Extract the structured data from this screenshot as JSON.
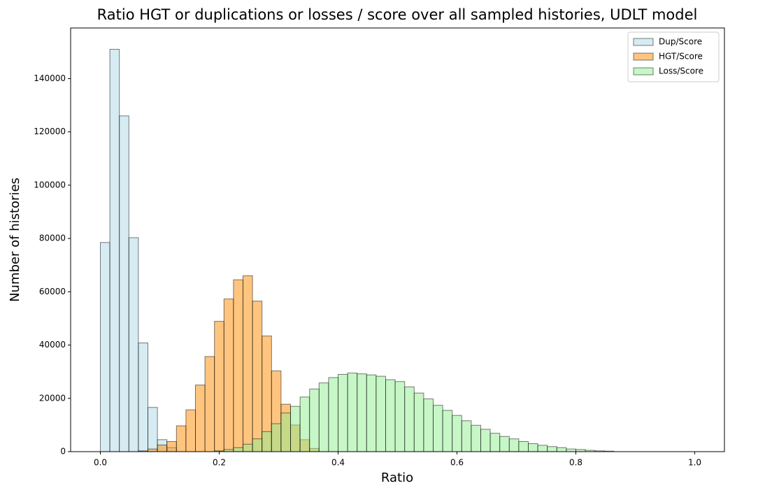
{
  "chart_data": {
    "type": "histogram",
    "title": "Ratio HGT or duplications or losses / score over all sampled histories, UDLT model",
    "xlabel": "Ratio",
    "ylabel": "Number of histories",
    "xlim": [
      -0.05,
      1.05
    ],
    "ylim": [
      0,
      159000
    ],
    "xticks": [
      {
        "value": 0,
        "label": "0.0"
      },
      0.2,
      0.4,
      0.6,
      0.8,
      {
        "value": 1,
        "label": "1.0"
      }
    ],
    "yticks": [
      0,
      20000,
      40000,
      60000,
      80000,
      100000,
      120000,
      140000
    ],
    "legend": "upper right",
    "opacity": 0.5,
    "series": [
      {
        "name": "Dup/Score",
        "color": "#add8e6",
        "bins": [
          0,
          0.016,
          0.032,
          0.048,
          0.064,
          0.08,
          0.096,
          0.112,
          0.128
        ],
        "values": [
          78500,
          151000,
          126000,
          80300,
          40800,
          16600,
          4500,
          1500
        ]
      },
      {
        "name": "HGT/Score",
        "color": "#ff8c00",
        "bins": [
          0.064,
          0.08,
          0.096,
          0.112,
          0.128,
          0.144,
          0.16,
          0.176,
          0.192,
          0.208,
          0.224,
          0.24,
          0.256,
          0.272,
          0.288,
          0.304,
          0.32,
          0.336,
          0.352,
          0.368
        ],
        "values": [
          300,
          1000,
          2500,
          3800,
          9700,
          15700,
          25000,
          35700,
          48900,
          57300,
          64500,
          66000,
          56500,
          43400,
          30300,
          17800,
          10000,
          4500,
          1200
        ]
      },
      {
        "name": "Loss/Score",
        "color": "#90ee90",
        "bins": [
          0.192,
          0.208,
          0.224,
          0.24,
          0.256,
          0.272,
          0.288,
          0.304,
          0.32,
          0.336,
          0.352,
          0.368,
          0.384,
          0.4,
          0.416,
          0.432,
          0.448,
          0.464,
          0.48,
          0.496,
          0.512,
          0.528,
          0.544,
          0.56,
          0.576,
          0.592,
          0.608,
          0.624,
          0.64,
          0.656,
          0.672,
          0.688,
          0.704,
          0.72,
          0.736,
          0.752,
          0.768,
          0.784,
          0.8,
          0.816,
          0.832,
          0.848,
          0.864
        ],
        "values": [
          300,
          800,
          1500,
          2800,
          4800,
          7500,
          10500,
          14500,
          17000,
          20500,
          23500,
          25800,
          27800,
          29000,
          29500,
          29200,
          28800,
          28300,
          27000,
          26300,
          24300,
          22000,
          19800,
          17400,
          15500,
          13600,
          11600,
          9900,
          8400,
          6900,
          5700,
          4800,
          3800,
          3000,
          2400,
          1900,
          1500,
          1000,
          800,
          500,
          300,
          200
        ]
      }
    ]
  }
}
